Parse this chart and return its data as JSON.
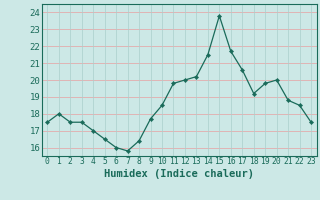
{
  "x": [
    0,
    1,
    2,
    3,
    4,
    5,
    6,
    7,
    8,
    9,
    10,
    11,
    12,
    13,
    14,
    15,
    16,
    17,
    18,
    19,
    20,
    21,
    22,
    23
  ],
  "y": [
    17.5,
    18.0,
    17.5,
    17.5,
    17.0,
    16.5,
    16.0,
    15.8,
    16.4,
    17.7,
    18.5,
    19.8,
    20.0,
    20.2,
    21.5,
    23.8,
    21.7,
    20.6,
    19.2,
    19.8,
    20.0,
    18.8,
    18.5,
    17.5
  ],
  "xlabel": "Humidex (Indice chaleur)",
  "ylabel": "",
  "ylim": [
    15.5,
    24.5
  ],
  "xlim": [
    -0.5,
    23.5
  ],
  "yticks": [
    16,
    17,
    18,
    19,
    20,
    21,
    22,
    23,
    24
  ],
  "xticks": [
    0,
    1,
    2,
    3,
    4,
    5,
    6,
    7,
    8,
    9,
    10,
    11,
    12,
    13,
    14,
    15,
    16,
    17,
    18,
    19,
    20,
    21,
    22,
    23
  ],
  "line_color": "#1a6b5a",
  "marker_color": "#1a6b5a",
  "bg_color": "#cce8e6",
  "grid_color_major": "#aacfcc",
  "grid_color_minor": "#f5b8b8",
  "axis_color": "#1a6b5a",
  "xlabel_color": "#1a6b5a",
  "tick_color": "#1a6b5a",
  "xlabel_fontsize": 7.5,
  "ytick_fontsize": 6.5,
  "xtick_fontsize": 5.8
}
